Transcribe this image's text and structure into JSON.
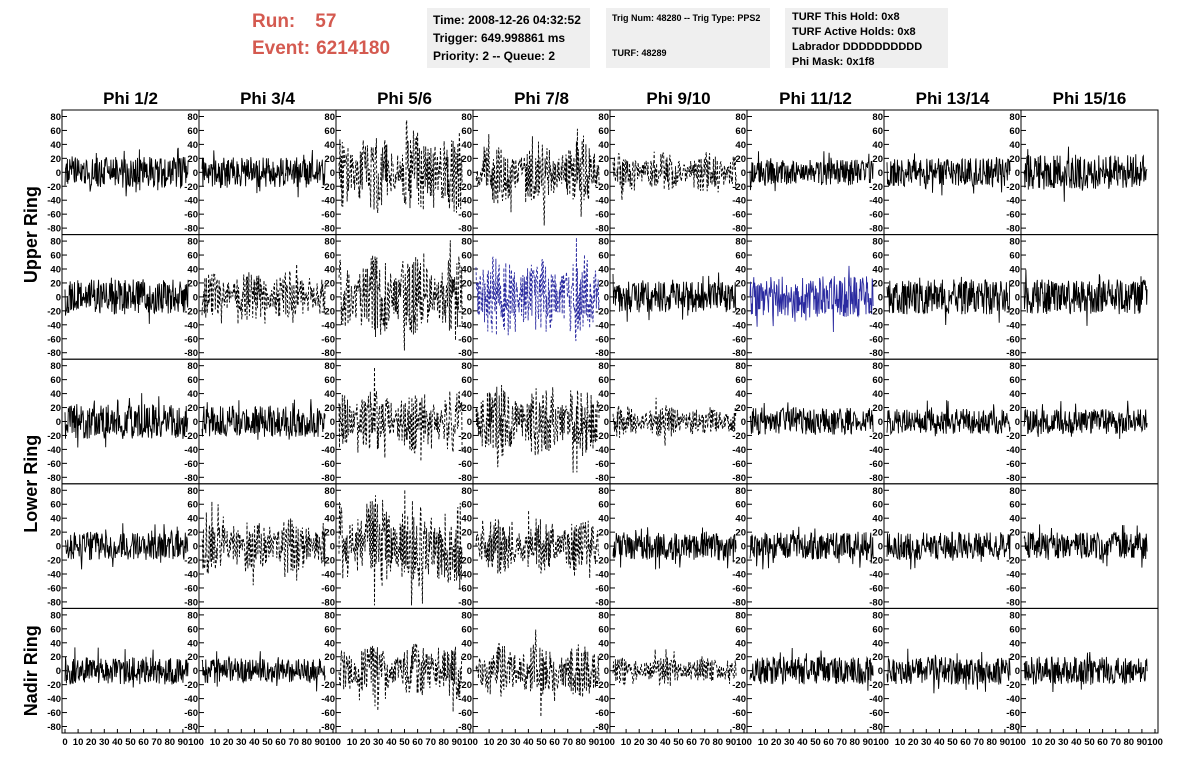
{
  "header": {
    "run_label": "Run:",
    "run_value": "57",
    "event_label": "Event:",
    "event_value": "6214180",
    "time": "Time: 2008-12-26 04:32:52",
    "trigger": "Trigger: 649.998861 ms",
    "priority": "Priority: 2 -- Queue: 2",
    "trig_num": "Trig Num: 48280 -- Trig Type: PPS2",
    "turf": "TURF: 48289",
    "turf_this_hold": "TURF This Hold: 0x8",
    "turf_active_holds": "TURF Active Holds: 0x8",
    "labrador": "Labrador DDDDDDDDDD",
    "phi_mask": "Phi Mask: 0x1f8"
  },
  "chart_data": {
    "type": "line",
    "columns": [
      "Phi 1/2",
      "Phi 3/4",
      "Phi 5/6",
      "Phi 7/8",
      "Phi 9/10",
      "Phi 11/12",
      "Phi 13/14",
      "Phi 15/16"
    ],
    "ring_labels": [
      {
        "text": "Upper Ring",
        "rows": [
          0,
          1
        ]
      },
      {
        "text": "Lower Ring",
        "rows": [
          2,
          3
        ]
      },
      {
        "text": "Nadir Ring",
        "rows": [
          4,
          4
        ]
      }
    ],
    "xlim": [
      0,
      100
    ],
    "ylim": [
      -85,
      85
    ],
    "yticks": [
      -80,
      -60,
      -40,
      -20,
      0,
      20,
      40,
      60,
      80
    ],
    "xticks": [
      0,
      10,
      20,
      30,
      40,
      50,
      60,
      70,
      80,
      90,
      100
    ],
    "colors": {
      "solid": "#000000",
      "highlight": "#2a2aa0"
    },
    "styles": [
      [
        "solid",
        "solid",
        "dashed",
        "dashed",
        "dashed",
        "solid",
        "solid",
        "solid"
      ],
      [
        "solid",
        "dashed",
        "dashed",
        "blue-dashed",
        "solid",
        "blue-solid",
        "solid",
        "solid"
      ],
      [
        "solid",
        "solid",
        "dashed",
        "dashed",
        "dashed",
        "solid",
        "solid",
        "solid"
      ],
      [
        "solid",
        "dashed",
        "dashed",
        "dashed",
        "solid",
        "solid",
        "solid",
        "solid"
      ],
      [
        "solid",
        "solid",
        "dashed",
        "dashed",
        "dashed",
        "solid",
        "solid",
        "solid"
      ]
    ],
    "amplitudes": [
      [
        22,
        22,
        45,
        35,
        22,
        18,
        20,
        25
      ],
      [
        25,
        28,
        45,
        45,
        22,
        30,
        25,
        25
      ],
      [
        25,
        22,
        35,
        40,
        18,
        20,
        18,
        18
      ],
      [
        20,
        30,
        50,
        30,
        20,
        20,
        20,
        20
      ],
      [
        20,
        18,
        30,
        30,
        15,
        20,
        20,
        20
      ]
    ]
  }
}
